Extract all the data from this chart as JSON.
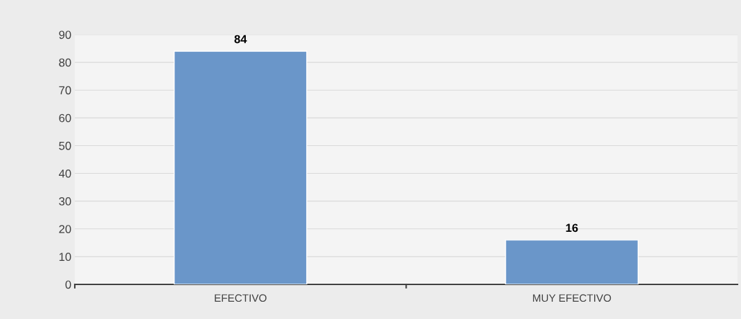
{
  "chart_data": {
    "type": "bar",
    "categories": [
      "EFECTIVO",
      "MUY EFECTIVO"
    ],
    "values": [
      84,
      16
    ],
    "color": "#6a96c9",
    "ylim": [
      0,
      90
    ],
    "yticks": [
      0,
      10,
      20,
      30,
      40,
      50,
      60,
      70,
      80,
      90
    ],
    "grid": "y",
    "data_labels": true,
    "legend": false
  }
}
